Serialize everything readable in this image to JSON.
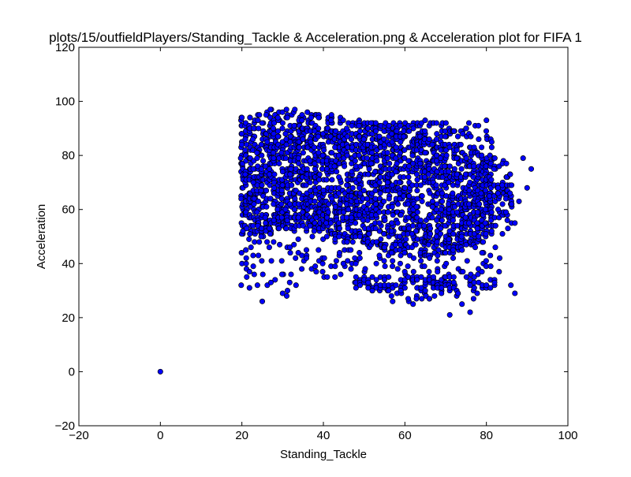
{
  "chart_data": {
    "type": "scatter",
    "title": "plots/15/outfieldPlayers/Standing_Tackle & Acceleration.png & Acceleration plot for FIFA 1",
    "xlabel": "Standing_Tackle",
    "ylabel": "Acceleration",
    "xlim": [
      -20,
      100
    ],
    "ylim": [
      -20,
      120
    ],
    "xticks": [
      -20,
      0,
      20,
      40,
      60,
      80,
      100
    ],
    "yticks": [
      -20,
      0,
      20,
      40,
      60,
      80,
      100,
      120
    ],
    "xtick_labels": [
      "−20",
      "0",
      "20",
      "40",
      "60",
      "80",
      "100"
    ],
    "ytick_labels": [
      "−20",
      "0",
      "20",
      "40",
      "60",
      "80",
      "100",
      "120"
    ],
    "grid": false,
    "marker_color": "#0000ff",
    "marker_edge": "#000000",
    "cluster": {
      "x_range": [
        20,
        86
      ],
      "y_upper": [
        [
          20,
          94
        ],
        [
          27,
          97
        ],
        [
          33,
          97
        ],
        [
          45,
          94
        ],
        [
          55,
          92
        ],
        [
          65,
          93
        ],
        [
          75,
          92
        ],
        [
          80,
          93
        ],
        [
          82,
          82
        ],
        [
          86,
          77
        ]
      ],
      "y_lower": [
        [
          20,
          32
        ],
        [
          25,
          26
        ],
        [
          30,
          28
        ],
        [
          35,
          35
        ],
        [
          45,
          34
        ],
        [
          55,
          28
        ],
        [
          62,
          25
        ],
        [
          70,
          26
        ],
        [
          75,
          22
        ],
        [
          80,
          30
        ],
        [
          86,
          30
        ]
      ],
      "dense_upper": [
        [
          20,
          92
        ],
        [
          30,
          91
        ],
        [
          40,
          90
        ],
        [
          50,
          89
        ],
        [
          60,
          89
        ],
        [
          70,
          88
        ],
        [
          80,
          80
        ],
        [
          84,
          72
        ]
      ],
      "dense_lower": [
        [
          20,
          50
        ],
        [
          30,
          51
        ],
        [
          40,
          52
        ],
        [
          50,
          47
        ],
        [
          60,
          42
        ],
        [
          70,
          43
        ],
        [
          80,
          48
        ],
        [
          84,
          58
        ]
      ]
    },
    "outliers": [
      {
        "x": 0,
        "y": 0
      },
      {
        "x": 91,
        "y": 75
      },
      {
        "x": 89,
        "y": 79
      },
      {
        "x": 90,
        "y": 68
      },
      {
        "x": 88,
        "y": 63
      },
      {
        "x": 87,
        "y": 55
      },
      {
        "x": 87,
        "y": 29
      },
      {
        "x": 86,
        "y": 32
      },
      {
        "x": 71,
        "y": 21
      },
      {
        "x": 76,
        "y": 22
      },
      {
        "x": 25,
        "y": 26
      },
      {
        "x": 31,
        "y": 28
      },
      {
        "x": 57,
        "y": 26
      },
      {
        "x": 62,
        "y": 25
      },
      {
        "x": 66,
        "y": 27
      },
      {
        "x": 74,
        "y": 25
      },
      {
        "x": 80,
        "y": 93
      },
      {
        "x": 33,
        "y": 97
      },
      {
        "x": 27,
        "y": 97
      }
    ]
  }
}
